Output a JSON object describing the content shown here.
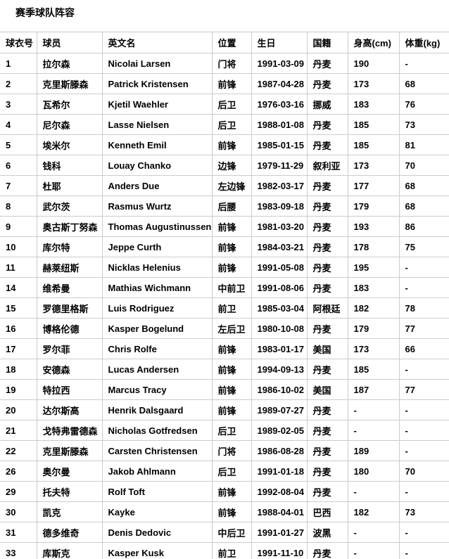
{
  "page": {
    "title": "赛季球队阵容"
  },
  "colors": {
    "border": "#cccccc",
    "text": "#000000",
    "background": "#ffffff"
  },
  "table": {
    "columns": [
      "球衣号",
      "球员",
      "英文名",
      "位置",
      "生日",
      "国籍",
      "身高(cm)",
      "体重(kg)"
    ],
    "column_keys": [
      "jersey-number",
      "player-name",
      "english-name",
      "position",
      "birthday",
      "nationality",
      "height",
      "weight"
    ],
    "rows": [
      [
        "1",
        "拉尔森",
        "Nicolai Larsen",
        "门将",
        "1991-03-09",
        "丹麦",
        "190",
        "-"
      ],
      [
        "2",
        "克里斯滕森",
        "Patrick Kristensen",
        "前锋",
        "1987-04-28",
        "丹麦",
        "173",
        "68"
      ],
      [
        "3",
        "瓦希尔",
        "Kjetil Waehler",
        "后卫",
        "1976-03-16",
        "挪威",
        "183",
        "76"
      ],
      [
        "4",
        "尼尔森",
        "Lasse Nielsen",
        "后卫",
        "1988-01-08",
        "丹麦",
        "185",
        "73"
      ],
      [
        "5",
        "埃米尔",
        "Kenneth Emil",
        "前锋",
        "1985-01-15",
        "丹麦",
        "185",
        "81"
      ],
      [
        "6",
        "钱科",
        "Louay Chanko",
        "边锋",
        "1979-11-29",
        "叙利亚",
        "173",
        "70"
      ],
      [
        "7",
        "杜耶",
        "Anders Due",
        "左边锋",
        "1982-03-17",
        "丹麦",
        "177",
        "68"
      ],
      [
        "8",
        "武尔茨",
        "Rasmus Wurtz",
        "后腰",
        "1983-09-18",
        "丹麦",
        "179",
        "68"
      ],
      [
        "9",
        "奥古斯丁努森",
        "Thomas Augustinussen",
        "前锋",
        "1981-03-20",
        "丹麦",
        "193",
        "86"
      ],
      [
        "10",
        "库尔特",
        "Jeppe Curth",
        "前锋",
        "1984-03-21",
        "丹麦",
        "178",
        "75"
      ],
      [
        "11",
        "赫莱纽斯",
        "Nicklas Helenius",
        "前锋",
        "1991-05-08",
        "丹麦",
        "195",
        "-"
      ],
      [
        "14",
        "维希曼",
        "Mathias Wichmann",
        "中前卫",
        "1991-08-06",
        "丹麦",
        "183",
        "-"
      ],
      [
        "15",
        "罗德里格斯",
        "Luis Rodriguez",
        "前卫",
        "1985-03-04",
        "阿根廷",
        "182",
        "78"
      ],
      [
        "16",
        "博格伦德",
        "Kasper Bogelund",
        "左后卫",
        "1980-10-08",
        "丹麦",
        "179",
        "77"
      ],
      [
        "17",
        "罗尔菲",
        "Chris Rolfe",
        "前锋",
        "1983-01-17",
        "美国",
        "173",
        "66"
      ],
      [
        "18",
        "安德森",
        "Lucas Andersen",
        "前锋",
        "1994-09-13",
        "丹麦",
        "185",
        "-"
      ],
      [
        "19",
        "特拉西",
        "Marcus Tracy",
        "前锋",
        "1986-10-02",
        "美国",
        "187",
        "77"
      ],
      [
        "20",
        "达尔斯高",
        "Henrik Dalsgaard",
        "前锋",
        "1989-07-27",
        "丹麦",
        "-",
        "-"
      ],
      [
        "21",
        "戈特弗雷德森",
        "Nicholas Gotfredsen",
        "后卫",
        "1989-02-05",
        "丹麦",
        "-",
        "-"
      ],
      [
        "22",
        "克里斯滕森",
        "Carsten Christensen",
        "门将",
        "1986-08-28",
        "丹麦",
        "189",
        "-"
      ],
      [
        "26",
        "奥尔曼",
        "Jakob Ahlmann",
        "后卫",
        "1991-01-18",
        "丹麦",
        "180",
        "70"
      ],
      [
        "29",
        "托夫特",
        "Rolf Toft",
        "前锋",
        "1992-08-04",
        "丹麦",
        "-",
        "-"
      ],
      [
        "30",
        "凯克",
        "Kayke",
        "前锋",
        "1988-04-01",
        "巴西",
        "182",
        "73"
      ],
      [
        "31",
        "德多维奇",
        "Denis Dedovic",
        "中后卫",
        "1991-01-27",
        "波黑",
        "-",
        "-"
      ],
      [
        "33",
        "库斯克",
        "Kasper Kusk",
        "前卫",
        "1991-11-10",
        "丹麦",
        "-",
        "-"
      ]
    ]
  }
}
